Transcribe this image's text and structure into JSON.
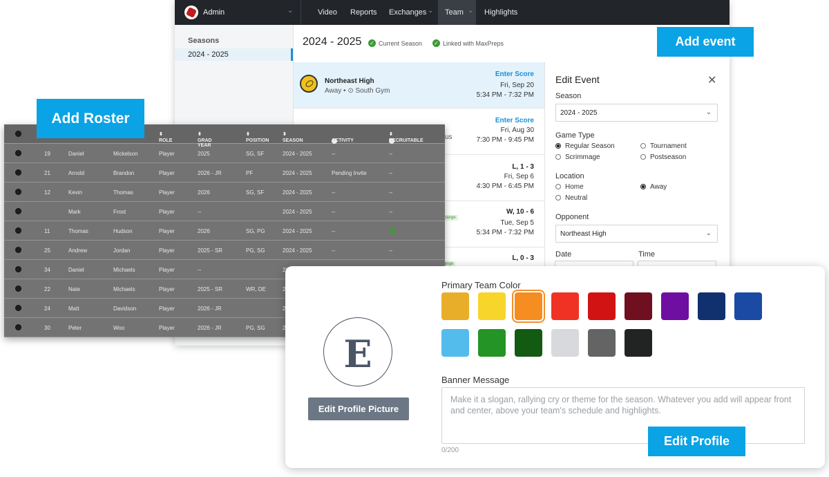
{
  "topbar": {
    "brand": "Admin",
    "nav": [
      "Video",
      "Reports",
      "Exchanges",
      "Team",
      "Highlights"
    ],
    "active_nav": "Team"
  },
  "sidebar": {
    "heading": "Seasons",
    "items": [
      "2024 - 2025"
    ]
  },
  "season": {
    "title": "2024 - 2025",
    "badges": [
      "Current Season",
      "Linked with MaxPreps"
    ]
  },
  "add_event_label": "Add event",
  "events": [
    {
      "team": "Northeast High",
      "sub": "Away • ⊙ South Gym",
      "result": "Enter Score",
      "date": "Fri, Sep 20",
      "time": "5:34 PM - 7:32 PM",
      "tag": ""
    },
    {
      "team": "",
      "sub": "us",
      "result": "Enter Score",
      "date": "Fri, Aug 30",
      "time": "7:30 PM - 9:45 PM",
      "tag": ""
    },
    {
      "team": "",
      "sub": "",
      "result": "L, 1 - 3",
      "date": "Fri, Sep 6",
      "time": "4:30 PM - 6:45 PM",
      "tag": ""
    },
    {
      "team": "",
      "sub": "",
      "result": "W, 10 - 6",
      "date": "Tue, Sep 5",
      "time": "5:34 PM - 7:32 PM",
      "tag": "hange"
    },
    {
      "team": "",
      "sub": "",
      "result": "L, 0 - 3",
      "date": "",
      "time": "",
      "tag": "ange"
    }
  ],
  "edit_event": {
    "title": "Edit Event",
    "season_label": "Season",
    "season_value": "2024 - 2025",
    "game_type_label": "Game Type",
    "game_types": [
      "Regular Season",
      "Tournament",
      "Scrimmage",
      "Postseason"
    ],
    "location_label": "Location",
    "locations": [
      "Home",
      "Away",
      "Neutral"
    ],
    "opponent_label": "Opponent",
    "opponent_value": "Northeast High",
    "date_label": "Date",
    "time_label": "Time"
  },
  "add_roster_label": "Add Roster",
  "roster": {
    "headers": [
      "ROLE",
      "GRAD YEAR",
      "POSITION",
      "SEASON",
      "ACTIVITY",
      "RECRUITABLE"
    ],
    "rows": [
      [
        "19",
        "Daniel",
        "Mickelson",
        "Player",
        "2025",
        "SG, SF",
        "2024 - 2025",
        "--",
        "--"
      ],
      [
        "21",
        "Arnold",
        "Brandon",
        "Player",
        "2026 - JR",
        "PF",
        "2024 - 2025",
        "Pending Invite",
        "--"
      ],
      [
        "12",
        "Kevin",
        "Thomas",
        "Player",
        "2026",
        "SG, SF",
        "2024 - 2025",
        "--",
        "--"
      ],
      [
        "",
        "Mark",
        "Frost",
        "Player",
        "--",
        "",
        "2024 - 2025",
        "--",
        "--"
      ],
      [
        "11",
        "Thomas",
        "Hudson",
        "Player",
        "2026",
        "SG, PG",
        "2024 - 2025",
        "--",
        ""
      ],
      [
        "25",
        "Andrew",
        "Jordan",
        "Player",
        "2025 - SR",
        "PG, SG",
        "2024 - 2025",
        "--",
        "--"
      ],
      [
        "34",
        "Daniel",
        "Michaels",
        "Player",
        "--",
        "",
        "20",
        "",
        ""
      ],
      [
        "22",
        "Nate",
        "Michaels",
        "Player",
        "2025 - SR",
        "WR, DE",
        "2",
        "",
        ""
      ],
      [
        "24",
        "Matt",
        "Davidson",
        "Player",
        "2026 - JR",
        "",
        "2",
        "",
        ""
      ],
      [
        "30",
        "Peter",
        "Woo",
        "Player",
        "2026 - JR",
        "PG, SG",
        "2",
        "",
        ""
      ]
    ]
  },
  "profile": {
    "avatar_letter": "E",
    "edit_picture_label": "Edit Profile Picture",
    "color_label": "Primary Team Color",
    "colors": [
      "#e8ae2a",
      "#f7d52a",
      "#f58d20",
      "#f03224",
      "#d11313",
      "#6f0f1f",
      "#6f0fa1",
      "#11306e",
      "#1a4aa3",
      "#53bcec",
      "#249426",
      "#135a12",
      "#d7d9dc",
      "#646464",
      "#222323"
    ],
    "selected_color": "#f58d20",
    "banner_label": "Banner Message",
    "banner_placeholder": "Make it a slogan, rallying cry or theme for the season. Whatever you add will appear front and center, above your team's schedule and highlights.",
    "char_count": "0/200",
    "edit_profile_label": "Edit Profile"
  }
}
